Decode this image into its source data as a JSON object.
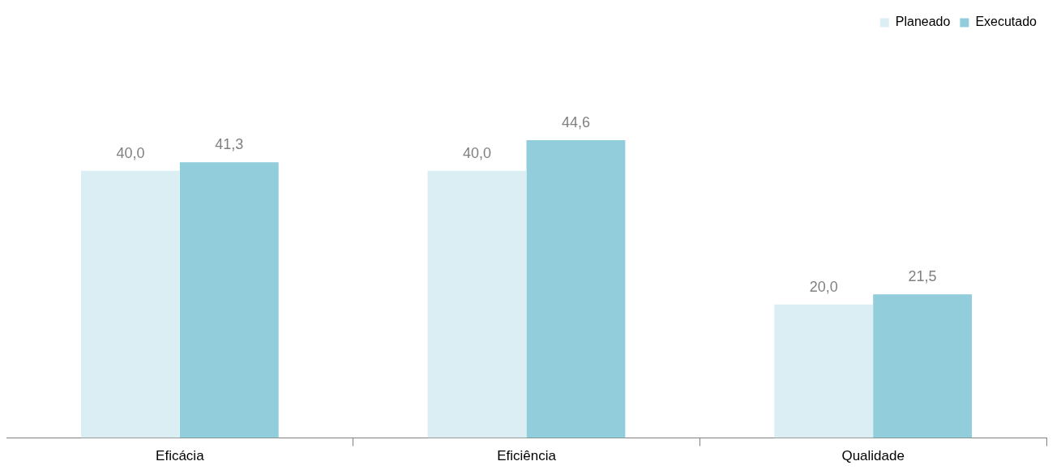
{
  "chart_data": {
    "type": "bar",
    "categories": [
      "Eficácia",
      "Eficiência",
      "Qualidade"
    ],
    "series": [
      {
        "name": "Planeado",
        "color": "#daeef3",
        "values": [
          40,
          40,
          20
        ],
        "value_labels": [
          "40,0",
          "40,0",
          "20,0"
        ]
      },
      {
        "name": "Executado",
        "color": "#92cddc",
        "values": [
          41.3,
          44.6,
          21.5
        ],
        "value_labels": [
          "41,3",
          "44,6",
          "21,5"
        ]
      }
    ],
    "legend": "top right",
    "grid": false
  }
}
